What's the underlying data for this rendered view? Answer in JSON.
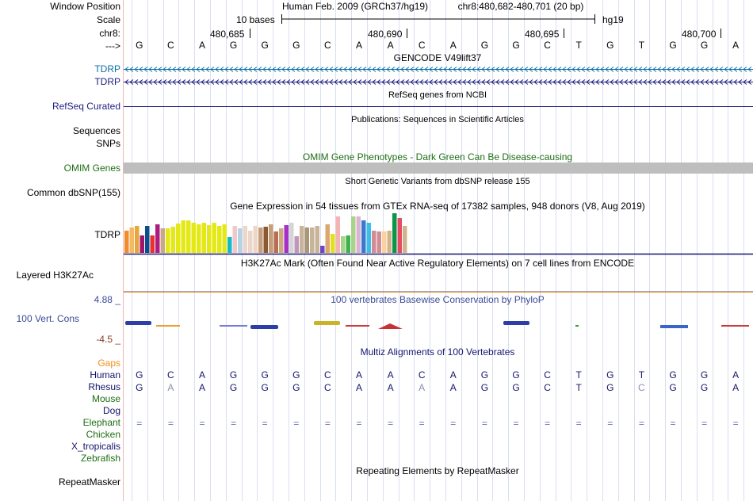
{
  "header": {
    "assembly": "Human Feb. 2009 (GRCh37/hg19)",
    "position": "chr8:480,682-480,701 (20 bp)",
    "scale_label": "10 bases",
    "scale_db": "hg19",
    "ruler_ticks": [
      "480,685",
      "480,690",
      "480,695",
      "480,700"
    ],
    "sequence": [
      "G",
      "C",
      "A",
      "G",
      "G",
      "G",
      "C",
      "A",
      "A",
      "C",
      "A",
      "G",
      "G",
      "C",
      "T",
      "G",
      "T",
      "G",
      "G",
      "A"
    ],
    "arrow": "--->"
  },
  "labels": {
    "window_position": "Window Position",
    "scale": "Scale",
    "chrom": "chr8:",
    "tdrp_1": "TDRP",
    "tdrp_2": "TDRP",
    "refseq": "RefSeq Curated",
    "sequences": "Sequences",
    "snps": "SNPs",
    "omim": "OMIM Genes",
    "common_snp": "Common dbSNP(155)",
    "gtex_gene": "TDRP",
    "h3k27ac": "Layered H3K27Ac",
    "cons": "100 Vert. Cons",
    "cons_max": "4.88 _",
    "cons_min": "-4.5 _",
    "repeatmasker": "RepeatMasker"
  },
  "tracks": {
    "gencode_title": "GENCODE V49lift37",
    "refseq_title": "RefSeq genes from NCBI",
    "publications_title": "Publications: Sequences in Scientific Articles",
    "omim_title": "OMIM Gene Phenotypes - Dark Green Can Be Disease-causing",
    "dbsnp_title": "Short Genetic Variants from dbSNP release 155",
    "gtex_title": "Gene Expression in 54 tissues from GTEx RNA-seq of 17382 samples, 948 donors (V8, Aug 2019)",
    "h3k27ac_title": "H3K27Ac Mark (Often Found Near Active Regulatory Elements) on 7 cell lines from ENCODE",
    "phylop_title": "100 vertebrates Basewise Conservation by PhyloP",
    "multiz_title": "Multiz Alignments of 100 Vertebrates",
    "repeat_title": "Repeating Elements by RepeatMasker"
  },
  "gtex_bars": {
    "values": [
      28,
      32,
      34,
      22,
      34,
      22,
      36,
      31,
      31,
      33,
      37,
      41,
      41,
      38,
      36,
      38,
      35,
      38,
      34,
      36,
      20,
      34,
      31,
      34,
      28,
      34,
      32,
      33,
      36,
      27,
      31,
      35,
      38,
      21,
      34,
      32,
      32,
      34,
      9,
      36,
      24,
      46,
      21,
      22,
      46,
      46,
      41,
      38,
      28,
      27,
      27,
      28,
      50,
      44,
      34
    ],
    "colors": [
      "#f08c2d",
      "#f5b964",
      "#e7a53c",
      "#a0136a",
      "#0a4f8c",
      "#e63232",
      "#ab1e7f",
      "#c9a78c",
      "#e5e817",
      "#e5e817",
      "#e5e817",
      "#e5e817",
      "#e5e817",
      "#e5e817",
      "#e5e817",
      "#e5e817",
      "#e5e817",
      "#e5e817",
      "#e5e817",
      "#e5e817",
      "#17b8c9",
      "#f0c8c8",
      "#b4d4e6",
      "#ecd6ca",
      "#ecd6ca",
      "#ecd6ca",
      "#c59e7a",
      "#8c5a32",
      "#c59e7a",
      "#b86e50",
      "#cfa882",
      "#a62fc8",
      "#d5d5d5",
      "#be96be",
      "#c8b49b",
      "#aa9678",
      "#c8b49b",
      "#c8b49b",
      "#6e46be",
      "#dca66e",
      "#e1e11e",
      "#f5b4b4",
      "#aad28c",
      "#3cb44b",
      "#aad28c",
      "#dcb4d2",
      "#3c78d2",
      "#3cbee6",
      "#d28c96",
      "#d28c96",
      "#fad2a0",
      "#d2b48c",
      "#0a9646",
      "#e64b64",
      "#d2b48c"
    ]
  },
  "alignment": {
    "species": [
      {
        "name": "Gaps",
        "color": "#f0901e"
      },
      {
        "name": "Human",
        "color": "#14146e"
      },
      {
        "name": "Rhesus",
        "color": "#14146e"
      },
      {
        "name": "Mouse",
        "color": "#1e6e14"
      },
      {
        "name": "Dog",
        "color": "#14146e"
      },
      {
        "name": "Elephant",
        "color": "#1e6e14"
      },
      {
        "name": "Chicken",
        "color": "#1e6e14"
      },
      {
        "name": "X_tropicalis",
        "color": "#14146e"
      },
      {
        "name": "Zebrafish",
        "color": "#1e6e14"
      }
    ],
    "human": [
      "G",
      "C",
      "A",
      "G",
      "G",
      "G",
      "C",
      "A",
      "A",
      "C",
      "A",
      "G",
      "G",
      "C",
      "T",
      "G",
      "T",
      "G",
      "G",
      "A"
    ],
    "rhesus": [
      "G",
      "A",
      "A",
      "G",
      "G",
      "G",
      "C",
      "A",
      "A",
      "A",
      "A",
      "G",
      "G",
      "C",
      "T",
      "G",
      "C",
      "G",
      "G",
      "A"
    ],
    "rhesus_mismatch": [
      1,
      9,
      16
    ],
    "elephant": [
      "=",
      "=",
      "=",
      "=",
      "=",
      "=",
      "=",
      "=",
      "=",
      "=",
      "=",
      "=",
      "=",
      "=",
      "=",
      "=",
      "=",
      "=",
      "=",
      "="
    ]
  },
  "colors": {
    "label_blue": "#1e1e82",
    "gencode_blue": "#0c6fa6",
    "omim_green": "#1e6e14",
    "track_title_green": "#1e6e14",
    "cons_blue": "#3c4b96",
    "cons_neg": "#8c3c28",
    "gaps_orange": "#f0901e"
  }
}
